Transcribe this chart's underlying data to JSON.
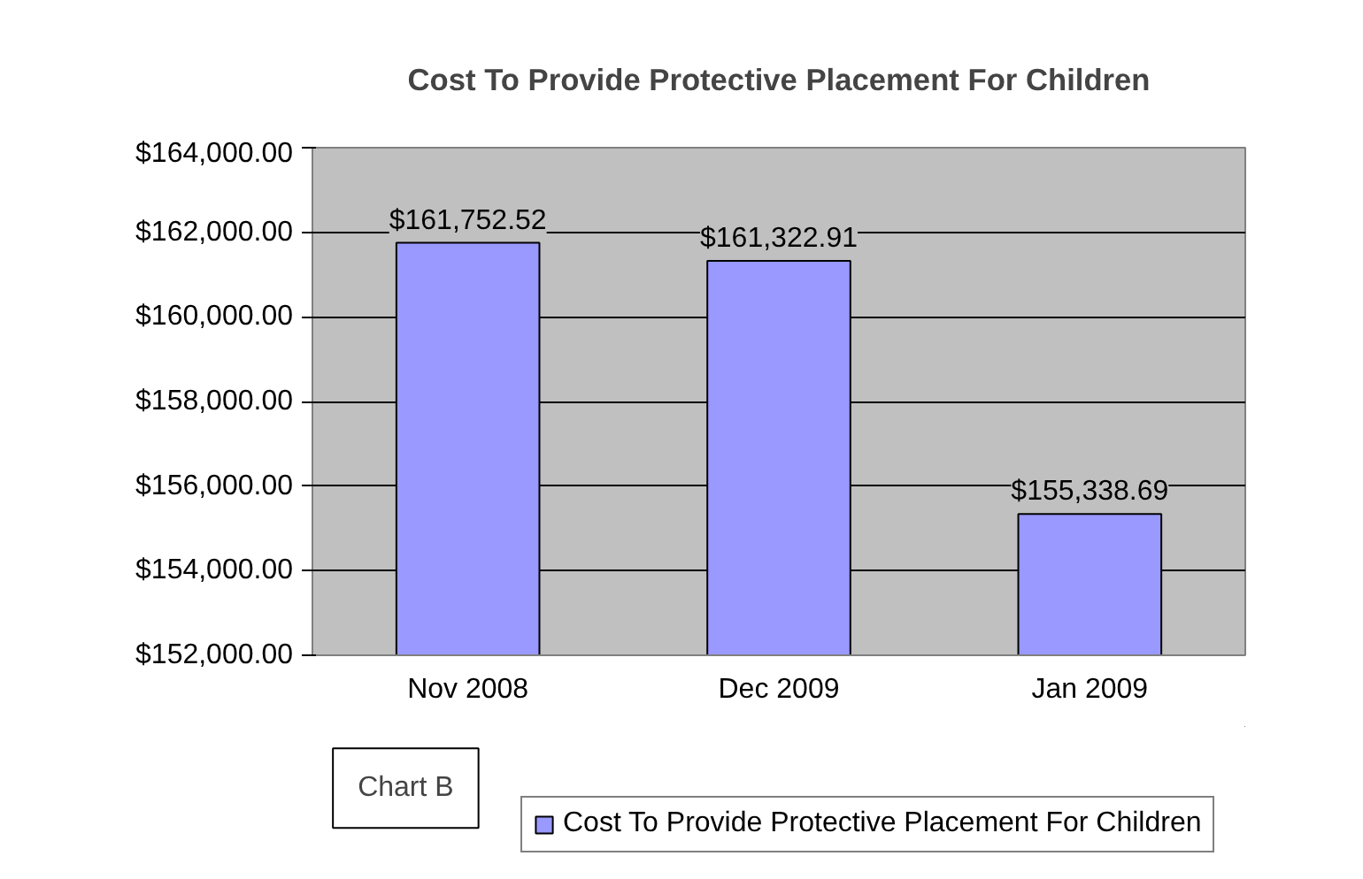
{
  "chart_data": {
    "type": "bar",
    "title": "Cost To Provide Protective Placement For Children",
    "categories": [
      "Nov 2008",
      "Dec 2009",
      "Jan 2009"
    ],
    "series": [
      {
        "name": "Cost To Provide Protective Placement For Children",
        "color": "#9999ff",
        "values": [
          161752.52,
          161322.91,
          155338.69
        ],
        "value_labels": [
          "$161,752.52",
          "$161,322.91",
          "$155,338.69"
        ]
      }
    ],
    "ylim": [
      152000,
      164000
    ],
    "yticks": [
      {
        "value": 152000,
        "label": "$152,000.00"
      },
      {
        "value": 154000,
        "label": "$154,000.00"
      },
      {
        "value": 156000,
        "label": "$156,000.00"
      },
      {
        "value": 158000,
        "label": "$158,000.00"
      },
      {
        "value": 160000,
        "label": "$160,000.00"
      },
      {
        "value": 162000,
        "label": "$162,000.00"
      },
      {
        "value": 164000,
        "label": "$164,000.00"
      }
    ],
    "grid": "y",
    "legend": "bottom",
    "annotations": [
      "Chart B"
    ]
  }
}
